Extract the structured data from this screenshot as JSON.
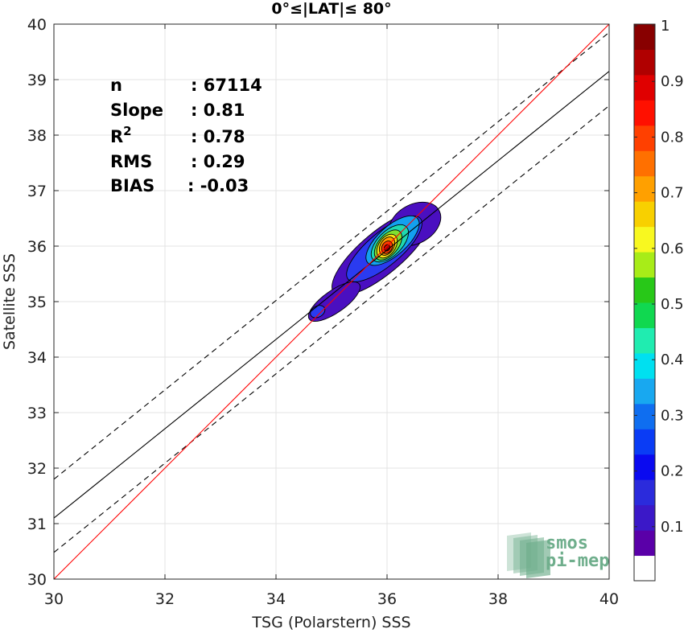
{
  "chart_data": {
    "type": "heatmap",
    "title": "0°≤|LAT|≤ 80°",
    "xlabel": "TSG (Polarstern) SSS",
    "ylabel": "Satellite SSS",
    "xlim": [
      30,
      40
    ],
    "ylim": [
      30,
      40
    ],
    "x_ticks": [
      "30",
      "32",
      "34",
      "36",
      "38",
      "40"
    ],
    "y_ticks": [
      "30",
      "31",
      "32",
      "33",
      "34",
      "35",
      "36",
      "37",
      "38",
      "39",
      "40"
    ],
    "grid": true,
    "stats": [
      {
        "key": "n",
        "value": ": 67114"
      },
      {
        "key": "Slope",
        "value": ": 0.81"
      },
      {
        "key": "R",
        "sup": "2",
        "value": ": 0.78"
      },
      {
        "key": "RMS",
        "value": ": 0.29"
      },
      {
        "key": "BIAS",
        "value": ": -0.03"
      }
    ],
    "lines": {
      "identity": {
        "color": "#ff0000",
        "points": [
          [
            30,
            30
          ],
          [
            40,
            40
          ]
        ]
      },
      "regression": {
        "color": "#000000",
        "points": [
          [
            30,
            31.1
          ],
          [
            40,
            39.15
          ]
        ]
      },
      "upper_bound": {
        "color": "#000000",
        "dash": true,
        "points": [
          [
            30,
            31.8
          ],
          [
            40,
            39.85
          ]
        ]
      },
      "lower_bound": {
        "color": "#000000",
        "dash": true,
        "points": [
          [
            30,
            30.48
          ],
          [
            40,
            38.53
          ]
        ]
      }
    },
    "density_contours": [
      {
        "level": 0.05,
        "color": "#4a0fc0",
        "ellipses": [
          {
            "cx": 35.9,
            "cy": 35.88,
            "rx": 1.12,
            "ry": 0.38,
            "angle": 40
          },
          {
            "cx": 35.05,
            "cy": 35.0,
            "rx": 0.55,
            "ry": 0.2,
            "angle": 35
          },
          {
            "cx": 36.5,
            "cy": 36.4,
            "rx": 0.5,
            "ry": 0.35,
            "angle": 30
          }
        ]
      },
      {
        "level": 0.2,
        "color": "#2a3bf0",
        "ellipses": [
          {
            "cx": 35.95,
            "cy": 35.95,
            "rx": 0.85,
            "ry": 0.3,
            "angle": 40
          },
          {
            "cx": 34.75,
            "cy": 34.82,
            "rx": 0.14,
            "ry": 0.1,
            "angle": 30
          }
        ]
      },
      {
        "level": 0.3,
        "color": "#13a0f0",
        "ellipses": [
          {
            "cx": 36.1,
            "cy": 36.1,
            "rx": 0.6,
            "ry": 0.26,
            "angle": 42
          }
        ]
      },
      {
        "level": 0.4,
        "color": "#1ed9b0",
        "ellipses": [
          {
            "cx": 36.05,
            "cy": 36.05,
            "rx": 0.42,
            "ry": 0.22,
            "angle": 45
          }
        ]
      },
      {
        "level": 0.55,
        "color": "#7fe030",
        "ellipses": [
          {
            "cx": 36.02,
            "cy": 36.02,
            "rx": 0.32,
            "ry": 0.18,
            "angle": 50
          }
        ]
      },
      {
        "level": 0.65,
        "color": "#f7e312",
        "ellipses": [
          {
            "cx": 36.0,
            "cy": 36.0,
            "rx": 0.24,
            "ry": 0.15,
            "angle": 55
          }
        ]
      },
      {
        "level": 0.75,
        "color": "#ff9a00",
        "ellipses": [
          {
            "cx": 36.0,
            "cy": 36.0,
            "rx": 0.18,
            "ry": 0.12,
            "angle": 58
          }
        ]
      },
      {
        "level": 0.85,
        "color": "#ff3a00",
        "ellipses": [
          {
            "cx": 36.0,
            "cy": 35.98,
            "rx": 0.12,
            "ry": 0.09,
            "angle": 60
          }
        ]
      },
      {
        "level": 0.95,
        "color": "#b00000",
        "ellipses": [
          {
            "cx": 36.0,
            "cy": 35.97,
            "rx": 0.06,
            "ry": 0.05,
            "angle": 60
          }
        ]
      }
    ],
    "colorbar": {
      "range": [
        0,
        1
      ],
      "bands": [
        "#ffffff",
        "#5a00a8",
        "#3b18c8",
        "#2b2bdc",
        "#0a0af0",
        "#0a3cf5",
        "#0f6ef0",
        "#18a8f0",
        "#00e0f0",
        "#20ecb0",
        "#10d850",
        "#28c818",
        "#a8ec18",
        "#f8f820",
        "#f8d000",
        "#ffa000",
        "#ff7000",
        "#ff4000",
        "#ff1000",
        "#e00000",
        "#b00000",
        "#880000"
      ],
      "ticks": [
        "0.1",
        "0.2",
        "0.3",
        "0.4",
        "0.5",
        "0.6",
        "0.7",
        "0.8",
        "0.9",
        "1"
      ]
    },
    "logo": {
      "line1": "smos",
      "line2": "pi-mep",
      "color": "#6fae8c"
    }
  }
}
